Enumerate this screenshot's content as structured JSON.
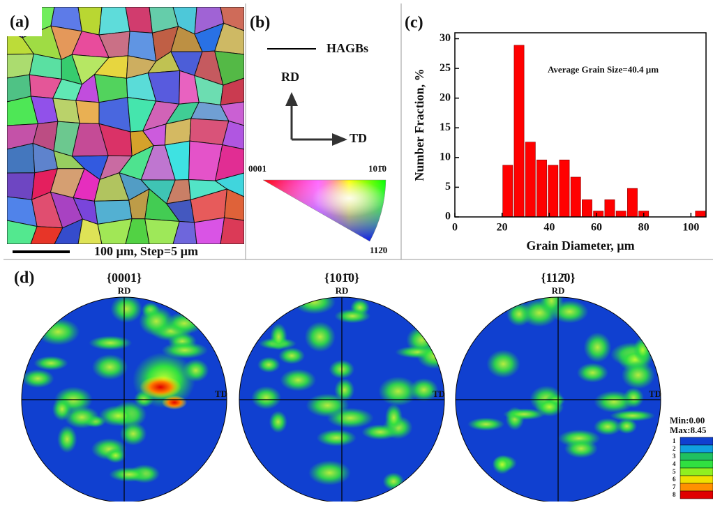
{
  "panels": {
    "a": {
      "label": "(a)",
      "scale_bar": "100 µm, Step=5 µm"
    },
    "b": {
      "label": "(b)",
      "legend": "HAGBs",
      "rd": "RD",
      "td": "TD",
      "corners": [
        "0001",
        "101̄0",
        "112̄0"
      ]
    },
    "d": {
      "label": "(d)",
      "pole_figures": [
        {
          "title": "{0001}",
          "rd": "RD",
          "td": "TD"
        },
        {
          "title": "{101̄0}",
          "rd": "RD",
          "td": "TD"
        },
        {
          "title": "{112̄0}",
          "rd": "RD",
          "td": "TD"
        }
      ],
      "colorbar": {
        "min": "Min:0.00",
        "max": "Max:8.45",
        "levels": [
          "1",
          "2",
          "3",
          "4",
          "5",
          "6",
          "7",
          "8"
        ]
      }
    }
  },
  "chart_data": {
    "type": "histogram",
    "panel_label": "(c)",
    "annotation": "Average Grain Size=40.4 µm",
    "xlabel": "Grain Diameter, µm",
    "ylabel": "Number Fraction, %",
    "bins": [
      20,
      24.8,
      29.6,
      34.4,
      39.2,
      44,
      48.8,
      53.6,
      58.4,
      63.2,
      68,
      72.8,
      77.6,
      82.4,
      87.2,
      92,
      96.8,
      101.6,
      106.4
    ],
    "counts": [
      8.7,
      28.9,
      12.6,
      9.6,
      8.7,
      9.6,
      6.7,
      2.9,
      1,
      2.9,
      1,
      4.8,
      1,
      0,
      0,
      0,
      0,
      1
    ],
    "color": "#ff0000",
    "xlim": [
      0,
      106.4
    ],
    "ylim": [
      0,
      31
    ],
    "xticks": [
      0,
      20,
      40,
      60,
      80,
      100
    ],
    "yticks": [
      0,
      5,
      10,
      15,
      20,
      25,
      30
    ]
  }
}
